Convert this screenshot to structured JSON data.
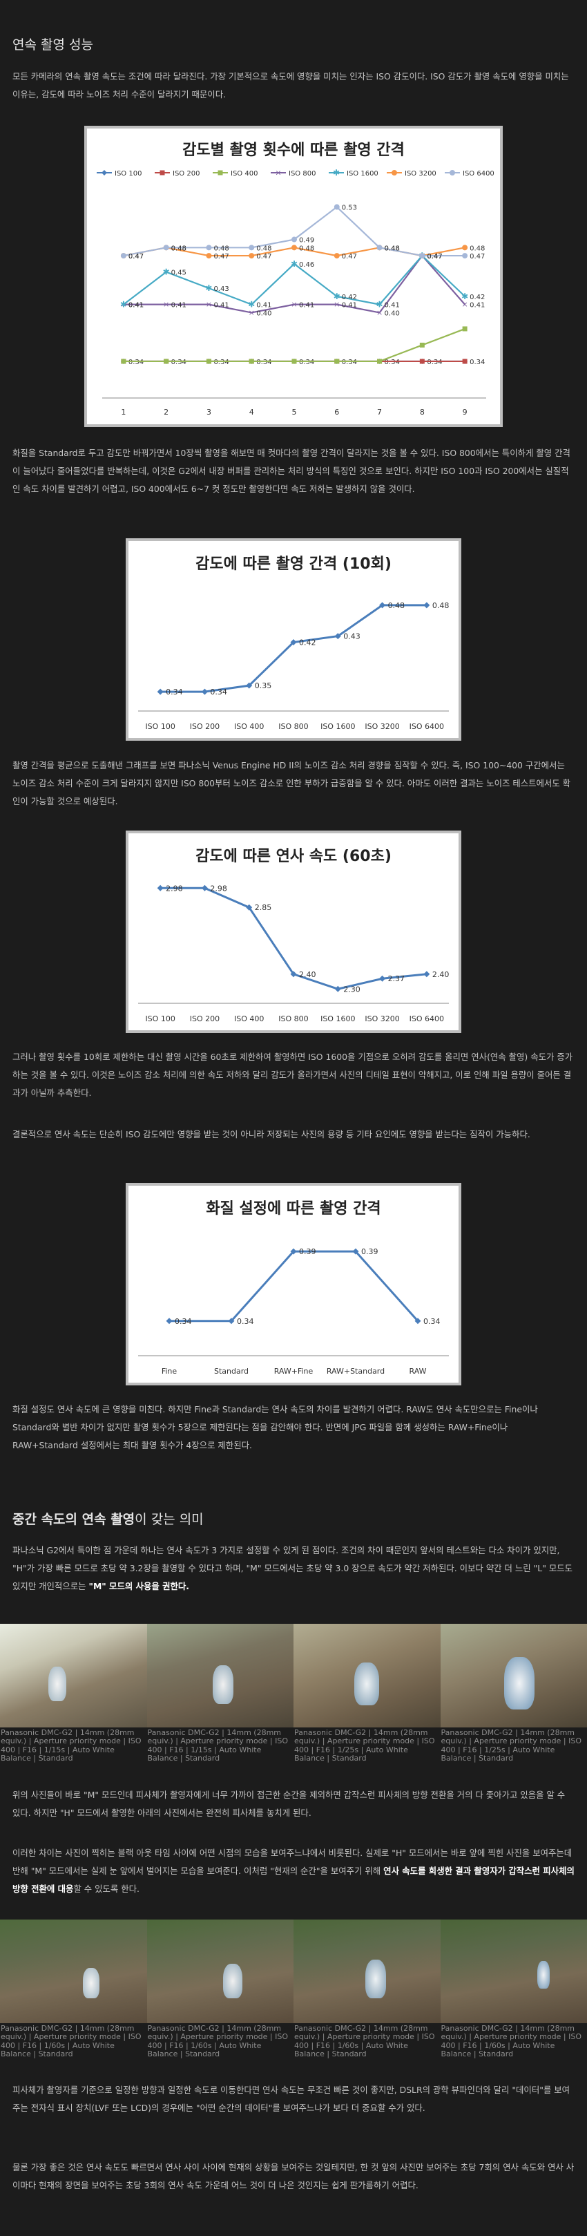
{
  "section1": {
    "title": "연속 촬영 성능",
    "p1": "모든 카메라의 연속 촬영 속도는 조건에 따라 달라진다. 가장 기본적으로 속도에 영향을 미치는 인자는 ISO 감도이다. ISO 감도가 촬영 속도에 영향을 미치는 이유는, 감도에 따라 노이즈 처리 수준이 달라지기 때문이다.",
    "p2": "화질을 Standard로 두고 감도만 바꿔가면서 10장씩 촬영을 해보면 매 컷마다의 촬영 간격이 달라지는 것을 볼 수 있다. ISO 800에서는 특이하게 촬영 간격이 늘어났다 줄어들었다를 반복하는데, 이것은 G2에서 내장 버퍼를 관리하는 처리 방식의 특징인 것으로 보인다. 하지만 ISO 100과 ISO 200에서는 실질적인 속도 차이를 발견하기 어렵고, ISO 400에서도 6~7 컷 정도만 촬영한다면 속도 저하는 발생하지 않을 것이다.",
    "p3": "촬영 간격을 평균으로 도출해낸 그래프를 보면 파나소닉 Venus Engine HD II의 노이즈 감소 처리 경향을 짐작할 수 있다. 즉, ISO 100~400 구간에서는 노이즈 감소 처리 수준이 크게 달라지지 않지만 ISO 800부터 노이즈 감소로 인한 부하가 급증함을 알 수 있다. 아마도 이러한 결과는 노이즈 테스트에서도 확인이 가능할 것으로 예상된다.",
    "p4": "그러나 촬영 횟수를 10회로 제한하는 대신 촬영 시간을 60초로 제한하여 촬영하면 ISO 1600을 기점으로 오히려 감도를 올리면 연사(연속 촬영) 속도가 증가하는 것을 볼 수 있다. 이것은 노이즈 감소 처리에 의한 속도 저하와 달리 감도가 올라가면서 사진의 디테일 표현이 약해지고, 이로 인해 파일 용량이 줄어든 결과가 아닐까 추측한다.",
    "p5": "결론적으로 연사 속도는 단순히 ISO 감도에만 영향을 받는 것이 아니라 저장되는 사진의 용량 등 기타 요인에도 영향을 받는다는 짐작이 가능하다.",
    "p6": "화질 설정도 연사 속도에 큰 영향을 미친다. 하지만 Fine과 Standard는 연사 속도의 차이를 발견하기 어렵다. RAW도 연사 속도만으로는 Fine이나 Standard와 별반 차이가 없지만 촬영 횟수가 5장으로 제한된다는 점을 감안해야 한다. 반면에 JPG 파일을 함께 생성하는 RAW+Fine이나 RAW+Standard 설정에서는 최대 촬영 횟수가 4장으로 제한된다."
  },
  "section2": {
    "title_bold": "중간 속도의 연속 촬영",
    "title_rest": "이 갖는 의미",
    "p1": "파나소닉 G2에서 특이한 점 가운데 하나는 연사 속도가 3 가지로 설정할 수 있게 된 점이다. 조건의 차이 때문인지 앞서의 테스트와는 다소 차이가 있지만, \"H\"가 가장 빠른 모드로 초당 약 3.2장을 촬영할 수 있다고 하며, \"M\" 모드에서는 초당 약 3.0 장으로 속도가 약간 저하된다. 이보다 약간 더 느린 \"L\" 모드도 있지만 개인적으로는",
    "p1_bold": "\"M\" 모드의 사용을 권한다.",
    "p2": "위의 사진들이 바로 \"M\" 모드인데 피사체가 촬영자에게 너무 가까이 접근한 순간을 제외하면 갑작스런 피사체의 방향 전환을 거의 다 좇아가고 있음을 알 수 있다. 하지만 \"H\" 모드에서 촬영한 아래의 사진에서는 완전히 피사체를 놓치게 된다.",
    "p3a": "이러한 차이는 사진이 찍히는 블랙 아웃 타임 사이에 어떤 시점의 모습을 보여주느냐에서 비롯된다. 실제로 \"H\" 모드에서는 바로 앞에 찍힌 사진을 보여주는데 반해 \"M\" 모드에서는 실제 눈 앞에서 벌어지는 모습을 보여준다. 이처럼 \"현재의 순간\"을 보여주기 위해",
    "p3_bold": "연사 속도를 희생한 결과 촬영자가 갑작스런 피사체의 방향 전환에 대응",
    "p3b": "할 수 있도록 한다.",
    "p4": "피사체가 촬영자를 기준으로 일정한 방향과 일정한 속도로 이동한다면 연사 속도는 무조건 빠른 것이 좋지만, DSLR의 광학 뷰파인더와 달리 \"데이터\"를 보여주는 전자식 표시 장치(LVF 또는 LCD)의 경우에는 \"어떤 순간의 데이터\"를 보여주느냐가 보다 더 중요할 수가 있다.",
    "p5": "물론 가장 좋은 것은 연사 속도도 빠르면서 연사 사이 사이에 현재의 상황을 보여주는 것일테지만, 한 컷 앞의 사진만 보여주는 초당 7회의 연사 속도와 연사 사이마다 현재의 장면을 보여주는 초당 3회의 연사 속도 가운데 어느 것이 더 나은 것인지는 쉽게 판가름하기 어렵다."
  },
  "photos_m": [
    "Panasonic DMC-G2 | 14mm (28mm equiv.) | Aperture priority mode | ISO 400 | F16 | 1/15s | Auto White Balance | Standard",
    "Panasonic DMC-G2 | 14mm (28mm equiv.) | Aperture priority mode | ISO 400 | F16 | 1/15s | Auto White Balance | Standard",
    "Panasonic DMC-G2 | 14mm (28mm equiv.) | Aperture priority mode | ISO 400 | F16 | 1/25s | Auto White Balance | Standard",
    "Panasonic DMC-G2 | 14mm (28mm equiv.) | Aperture priority mode | ISO 400 | F16 | 1/25s | Auto White Balance | Standard"
  ],
  "photos_h": [
    "Panasonic DMC-G2 | 14mm (28mm equiv.) | Aperture priority mode | ISO 400 | F16 | 1/60s | Auto White Balance | Standard",
    "Panasonic DMC-G2 | 14mm (28mm equiv.) | Aperture priority mode | ISO 400 | F16 | 1/60s | Auto White Balance | Standard",
    "Panasonic DMC-G2 | 14mm (28mm equiv.) | Aperture priority mode | ISO 400 | F16 | 1/60s | Auto White Balance | Standard",
    "Panasonic DMC-G2 | 14mm (28mm equiv.) | Aperture priority mode | ISO 400 | F16 | 1/60s | Auto White Balance | Standard"
  ],
  "chart_data": [
    {
      "type": "line",
      "title": "감도별 촬영 횟수에 따른 촬영 간격",
      "x": [
        1,
        2,
        3,
        4,
        5,
        6,
        7,
        8,
        9
      ],
      "ylim": [
        0.3,
        0.55
      ],
      "series": [
        {
          "name": "ISO 100",
          "color": "#4a7ebb",
          "values": [
            0.34,
            0.34,
            0.34,
            0.34,
            0.34,
            0.34,
            0.34,
            0.34,
            0.34
          ]
        },
        {
          "name": "ISO 200",
          "color": "#be4b48",
          "values": [
            0.34,
            0.34,
            0.34,
            0.34,
            0.34,
            0.34,
            0.34,
            0.34,
            0.34
          ]
        },
        {
          "name": "ISO 400",
          "color": "#98b954",
          "values": [
            0.34,
            0.34,
            0.34,
            0.34,
            0.34,
            0.34,
            0.34,
            0.36,
            0.38
          ]
        },
        {
          "name": "ISO 800",
          "color": "#7d60a0",
          "values": [
            0.41,
            0.41,
            0.41,
            0.4,
            0.41,
            0.41,
            0.4,
            0.47,
            0.41
          ]
        },
        {
          "name": "ISO 1600",
          "color": "#46aac5",
          "values": [
            0.41,
            0.45,
            0.43,
            0.41,
            0.46,
            0.42,
            0.41,
            0.47,
            0.42
          ]
        },
        {
          "name": "ISO 3200",
          "color": "#f79646",
          "values": [
            0.47,
            0.48,
            0.47,
            0.47,
            0.48,
            0.47,
            0.48,
            0.47,
            0.48
          ]
        },
        {
          "name": "ISO 6400",
          "color": "#a5b7d8",
          "values": [
            0.47,
            0.48,
            0.48,
            0.48,
            0.49,
            0.53,
            0.48,
            0.47,
            0.47
          ]
        }
      ]
    },
    {
      "type": "line",
      "title": "감도에 따른 촬영 간격 (10회)",
      "categories": [
        "ISO 100",
        "ISO 200",
        "ISO 400",
        "ISO 800",
        "ISO 1600",
        "ISO 3200",
        "ISO 6400"
      ],
      "values": [
        0.34,
        0.34,
        0.35,
        0.42,
        0.43,
        0.48,
        0.48
      ],
      "ylim": [
        0.32,
        0.5
      ],
      "color": "#4a7ebb"
    },
    {
      "type": "line",
      "title": "감도에 따른 연사 속도 (60초)",
      "categories": [
        "ISO 100",
        "ISO 200",
        "ISO 400",
        "ISO 800",
        "ISO 1600",
        "ISO 3200",
        "ISO 6400"
      ],
      "values": [
        2.98,
        2.98,
        2.85,
        2.4,
        2.3,
        2.37,
        2.4
      ],
      "ylim": [
        2.25,
        3.0
      ],
      "color": "#4a7ebb"
    },
    {
      "type": "line",
      "title": "화질 설정에 따른 촬영 간격",
      "categories": [
        "Fine",
        "Standard",
        "RAW+Fine",
        "RAW+Standard",
        "RAW"
      ],
      "values": [
        0.34,
        0.34,
        0.39,
        0.39,
        0.34
      ],
      "ylim": [
        0.32,
        0.4
      ],
      "color": "#4a7ebb"
    }
  ]
}
